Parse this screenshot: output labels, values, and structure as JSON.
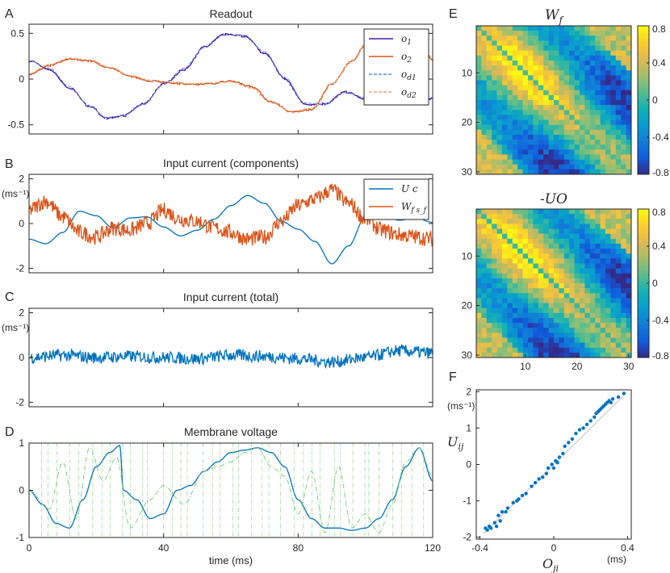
{
  "panel_letters": {
    "A": "A",
    "B": "B",
    "C": "C",
    "D": "D",
    "E": "E",
    "F": "F"
  },
  "colors": {
    "purple": "#4a1aa6",
    "orange": "#d95319",
    "blue": "#0072bd",
    "green": "#77c777",
    "gray": "#c0c0c0"
  },
  "chart_data": [
    {
      "id": "A",
      "type": "line",
      "title": "Readout",
      "xlim": [
        0,
        120
      ],
      "ylim": [
        -0.6,
        0.6
      ],
      "yticks": [
        -0.5,
        0,
        0.5
      ],
      "ytick_labels": [
        "-0.5",
        "0",
        "0.5"
      ],
      "legend": {
        "placement": "top-right",
        "entries": [
          "o_1",
          "o_2",
          "o_d1",
          "o_d2"
        ]
      },
      "series": [
        {
          "name": "o_1",
          "color": "#4a1aa6",
          "style": "step",
          "x": [
            0,
            6,
            12,
            18,
            23,
            28,
            34,
            40,
            46,
            52,
            58,
            64,
            70,
            76,
            82,
            88,
            94,
            100,
            106,
            112,
            118,
            120
          ],
          "y": [
            0.2,
            0.1,
            -0.1,
            -0.3,
            -0.43,
            -0.4,
            -0.27,
            -0.05,
            0.1,
            0.35,
            0.49,
            0.47,
            0.28,
            0.0,
            -0.28,
            -0.27,
            -0.14,
            -0.22,
            -0.2,
            -0.22,
            -0.24,
            -0.2
          ]
        },
        {
          "name": "o_2",
          "color": "#d95319",
          "style": "step",
          "x": [
            0,
            6,
            12,
            18,
            24,
            30,
            36,
            42,
            48,
            54,
            60,
            66,
            72,
            78,
            84,
            90,
            96,
            100,
            106,
            112,
            118,
            120
          ],
          "y": [
            0.05,
            0.15,
            0.22,
            0.2,
            0.12,
            0.03,
            -0.02,
            -0.04,
            -0.06,
            -0.05,
            -0.02,
            -0.08,
            -0.25,
            -0.36,
            -0.33,
            -0.05,
            0.2,
            0.38,
            0.48,
            0.42,
            0.28,
            0.2
          ]
        },
        {
          "name": "o_d1",
          "color": "#5a8fd6",
          "style": "smooth",
          "x": [
            0,
            6,
            12,
            18,
            23,
            28,
            34,
            40,
            46,
            52,
            58,
            64,
            70,
            76,
            82,
            88,
            94,
            100,
            106,
            112,
            118,
            120
          ],
          "y": [
            0.2,
            0.12,
            -0.08,
            -0.3,
            -0.42,
            -0.4,
            -0.28,
            -0.06,
            0.12,
            0.34,
            0.48,
            0.48,
            0.3,
            0.02,
            -0.26,
            -0.28,
            -0.15,
            -0.2,
            -0.2,
            -0.23,
            -0.23,
            -0.2
          ]
        },
        {
          "name": "o_d2",
          "color": "#e8a377",
          "style": "smooth",
          "x": [
            0,
            6,
            12,
            18,
            24,
            30,
            36,
            42,
            48,
            54,
            60,
            66,
            72,
            78,
            84,
            90,
            96,
            100,
            106,
            112,
            118,
            120
          ],
          "y": [
            0.06,
            0.16,
            0.23,
            0.21,
            0.13,
            0.04,
            -0.01,
            -0.03,
            -0.05,
            -0.04,
            -0.03,
            -0.1,
            -0.26,
            -0.35,
            -0.32,
            -0.05,
            0.2,
            0.38,
            0.47,
            0.41,
            0.27,
            0.2
          ]
        }
      ]
    },
    {
      "id": "B",
      "type": "line",
      "title": "Input current (components)",
      "xlim": [
        0,
        120
      ],
      "ylim": [
        -2.2,
        2.2
      ],
      "ylabel": "(ms⁻¹)",
      "yticks": [
        -2,
        0,
        2
      ],
      "ytick_labels": [
        "-2",
        "0",
        "2"
      ],
      "legend": {
        "placement": "top-right",
        "entries": [
          "U c",
          "W_f s_f"
        ]
      },
      "series": [
        {
          "name": "U c",
          "color": "#0072bd",
          "style": "smooth",
          "x": [
            0,
            5,
            10,
            15,
            20,
            25,
            30,
            35,
            40,
            45,
            50,
            55,
            60,
            65,
            70,
            75,
            80,
            85,
            90,
            95,
            100,
            105,
            110,
            115,
            120
          ],
          "y": [
            -0.7,
            -0.9,
            -0.4,
            0.55,
            0.35,
            -0.2,
            0.25,
            0.3,
            -0.15,
            -0.55,
            -0.3,
            0.2,
            0.8,
            1.25,
            0.9,
            0.1,
            -0.25,
            -0.8,
            -1.8,
            -1.0,
            0.3,
            0.4,
            0.15,
            0.25,
            0.05
          ]
        },
        {
          "name": "W_f s_f",
          "color": "#d95319",
          "style": "spiky",
          "x": [
            0,
            5,
            10,
            15,
            20,
            25,
            30,
            35,
            40,
            45,
            50,
            55,
            60,
            65,
            70,
            75,
            80,
            85,
            90,
            95,
            100,
            105,
            110,
            115,
            120
          ],
          "y": [
            0.6,
            1.0,
            0.3,
            -0.4,
            -0.6,
            -0.2,
            -0.3,
            0.0,
            0.6,
            0.2,
            0.1,
            -0.2,
            -0.4,
            -0.7,
            -0.6,
            0.1,
            0.8,
            1.1,
            1.5,
            0.9,
            0.2,
            -0.3,
            -0.5,
            -0.6,
            -0.7
          ]
        }
      ]
    },
    {
      "id": "C",
      "type": "line",
      "title": "Input current (total)",
      "xlim": [
        0,
        120
      ],
      "ylim": [
        -2.2,
        2.2
      ],
      "ylabel": "(ms⁻¹)",
      "yticks": [
        -2,
        0,
        2
      ],
      "ytick_labels": [
        "-2",
        "0",
        "2"
      ],
      "series": [
        {
          "name": "total",
          "color": "#0072bd",
          "style": "spiky",
          "x": [
            0,
            10,
            20,
            30,
            40,
            50,
            60,
            70,
            80,
            90,
            100,
            110,
            120
          ],
          "y": [
            0,
            0.1,
            0,
            0.05,
            0,
            -0.05,
            0.1,
            0.05,
            -0.05,
            -0.2,
            0.0,
            0.3,
            0.2
          ]
        }
      ]
    },
    {
      "id": "D",
      "type": "line",
      "title": "Membrane voltage",
      "xlim": [
        0,
        120
      ],
      "ylim": [
        -1,
        1
      ],
      "xlabel": "time (ms)",
      "xticks": [
        0,
        40,
        80,
        120
      ],
      "xtick_labels": [
        "0",
        "40",
        "80",
        "120"
      ],
      "yticks": [
        -1,
        0,
        1
      ],
      "ytick_labels": [
        "-1",
        "0",
        "1"
      ],
      "series": [
        {
          "name": "voltage",
          "color": "#0072bd",
          "style": "smooth",
          "x": [
            0,
            4,
            8,
            12,
            16,
            20,
            24,
            27,
            28,
            32,
            36,
            40,
            44,
            48,
            52,
            56,
            60,
            64,
            68,
            72,
            76,
            80,
            84,
            88,
            92,
            96,
            100,
            104,
            108,
            112,
            116,
            120
          ],
          "y": [
            0,
            -0.3,
            -0.7,
            -0.8,
            -0.2,
            0.5,
            0.8,
            0.95,
            0.0,
            -0.2,
            -0.6,
            -0.5,
            0.0,
            0.1,
            0.4,
            0.6,
            0.8,
            0.85,
            0.9,
            0.8,
            0.5,
            -0.2,
            -0.6,
            -0.8,
            -0.8,
            -0.85,
            -0.8,
            -0.6,
            -0.2,
            0.5,
            0.9,
            0.2
          ]
        },
        {
          "name": "thresholds",
          "color": "#77c777",
          "style": "dashdot",
          "x": [
            0,
            6,
            10,
            14,
            18,
            22,
            26,
            30,
            36,
            40,
            46,
            52,
            56,
            60,
            64,
            68,
            72,
            76,
            80,
            84,
            88,
            92,
            96,
            100,
            104,
            108,
            112,
            116,
            120
          ],
          "y": [
            0,
            -0.4,
            0.6,
            -0.6,
            0.9,
            0.2,
            0.7,
            -0.8,
            -0.2,
            0.1,
            -0.3,
            0.4,
            0.5,
            0.6,
            0.8,
            0.9,
            0.5,
            0.3,
            -0.5,
            0.4,
            -0.9,
            0.5,
            -0.8,
            -0.5,
            -0.9,
            -0.3,
            0.6,
            0.9,
            0.3
          ]
        }
      ]
    },
    {
      "id": "E1",
      "type": "heatmap",
      "title": "W_f",
      "matrix_size": 30,
      "ticks": [
        10,
        20,
        30
      ],
      "tick_labels": [
        "10",
        "20",
        "30"
      ],
      "clim": [
        -0.8,
        0.8
      ],
      "colorbar_ticks": [
        0.8,
        0.4,
        0,
        -0.4,
        -0.8
      ],
      "colorbar_labels": [
        "0.8",
        "0.4",
        "0",
        "-0.4",
        "-0.8"
      ]
    },
    {
      "id": "E2",
      "type": "heatmap",
      "title": "-UO",
      "matrix_size": 30,
      "ticks": [
        10,
        20,
        30
      ],
      "tick_labels": [
        "10",
        "20",
        "30"
      ],
      "clim": [
        -0.8,
        0.8
      ],
      "colorbar_ticks": [
        0.8,
        0.4,
        0,
        -0.4,
        -0.8
      ],
      "colorbar_labels": [
        "0.8",
        "0.4",
        "0",
        "-0.4",
        "-0.8"
      ]
    },
    {
      "id": "F",
      "type": "scatter",
      "xlabel": "O_ji",
      "ylabel": "U_ij",
      "xunit": "(ms)",
      "yunit": "(ms⁻¹)",
      "xlim": [
        -0.42,
        0.42
      ],
      "ylim": [
        -2.05,
        2.05
      ],
      "xticks": [
        -0.4,
        0,
        0.4
      ],
      "xtick_labels": [
        "-0.4",
        "0",
        "0.4"
      ],
      "yticks": [
        -2,
        -1,
        0,
        1,
        2
      ],
      "ytick_labels": [
        "-2",
        "-1",
        "0",
        "1",
        "2"
      ],
      "points_x": [
        -0.37,
        -0.36,
        -0.35,
        -0.34,
        -0.32,
        -0.31,
        -0.3,
        -0.29,
        -0.28,
        -0.26,
        -0.25,
        -0.22,
        -0.2,
        -0.19,
        -0.17,
        -0.15,
        -0.12,
        -0.1,
        -0.08,
        -0.06,
        -0.04,
        -0.03,
        -0.01,
        0.0,
        0.01,
        0.02,
        0.03,
        0.05,
        0.06,
        0.08,
        0.1,
        0.12,
        0.14,
        0.16,
        0.18,
        0.2,
        0.22,
        0.23,
        0.24,
        0.25,
        0.26,
        0.27,
        0.28,
        0.29,
        0.3,
        0.31,
        0.32,
        0.35,
        0.38
      ],
      "points_y": [
        -1.75,
        -1.8,
        -1.7,
        -1.75,
        -1.6,
        -1.7,
        -1.4,
        -1.55,
        -1.3,
        -1.3,
        -1.2,
        -1.05,
        -1.0,
        -0.95,
        -0.85,
        -0.8,
        -0.6,
        -0.5,
        -0.4,
        -0.35,
        -0.25,
        -0.1,
        0.0,
        -0.1,
        0.1,
        0.05,
        0.2,
        0.3,
        0.5,
        0.6,
        0.7,
        0.85,
        0.95,
        1.0,
        1.1,
        1.2,
        1.3,
        1.4,
        1.45,
        1.5,
        1.55,
        1.6,
        1.65,
        1.7,
        1.75,
        1.7,
        1.8,
        1.85,
        1.95
      ]
    }
  ]
}
